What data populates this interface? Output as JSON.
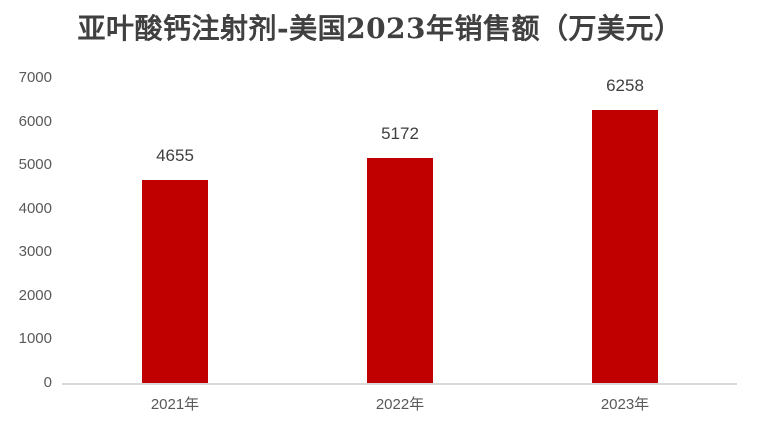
{
  "chart_data": {
    "type": "bar",
    "title": "亚叶酸钙注射剂-美国2023年销售额（万美元）",
    "categories": [
      "2021年",
      "2022年",
      "2023年"
    ],
    "values": [
      4655,
      5172,
      6258
    ],
    "xlabel": "",
    "ylabel": "",
    "ylim": [
      0,
      7000
    ],
    "yticks": [
      0,
      1000,
      2000,
      3000,
      4000,
      5000,
      6000,
      7000
    ],
    "grid": false,
    "legend": false,
    "bar_color": "#C00000",
    "title_color": "#404040",
    "data_label_color": "#404040",
    "axis_label_color": "#595959",
    "axis_line_color": "#D9D9D9"
  }
}
